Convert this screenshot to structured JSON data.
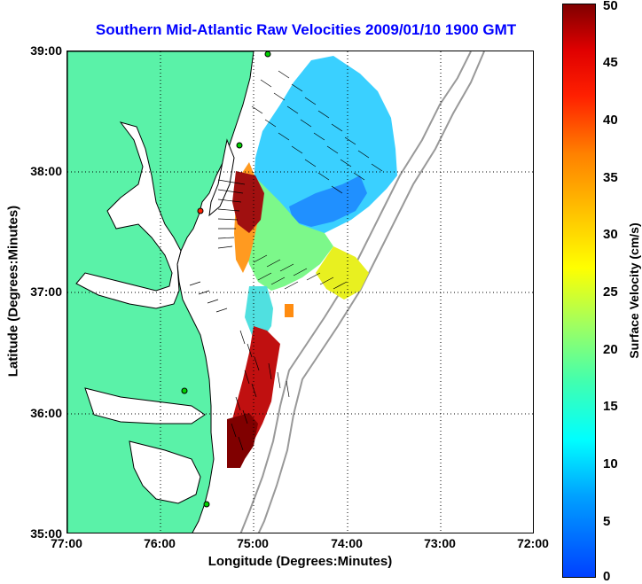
{
  "title": "Southern Mid-Atlantic Raw Velocities 2009/01/10 1900 GMT",
  "xlabel": "Longitude (Degrees:Minutes)",
  "ylabel": "Latitude (Degrees:Minutes)",
  "colorbar": {
    "label": "Surface Velocity (cm/s)",
    "ticks": [
      "50",
      "45",
      "40",
      "35",
      "30",
      "25",
      "20",
      "15",
      "10",
      "5",
      "0"
    ],
    "range": [
      0,
      50
    ]
  },
  "xticks": [
    "77:00",
    "76:00",
    "75:00",
    "74:00",
    "73:00",
    "72:00"
  ],
  "yticks": [
    "39:00",
    "38:00",
    "37:00",
    "36:00",
    "35:00"
  ],
  "colors": {
    "land": "#5af2a8",
    "coast": "#000000",
    "bathymetry": "#999999",
    "grid": "#000000",
    "title": "#0000ff"
  }
}
